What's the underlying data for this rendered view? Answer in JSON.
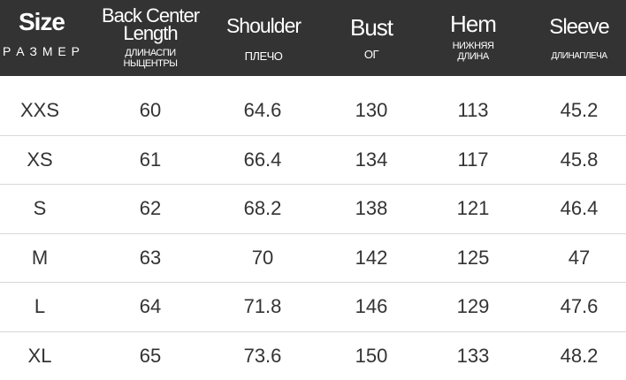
{
  "columns": [
    {
      "en": "Size",
      "ru": "Р А З М Е Р"
    },
    {
      "en": "Back Center Length",
      "ru": "ДЛИНАСПИ НЫЦЕНТРЫ"
    },
    {
      "en": "Shoulder",
      "ru": "ПЛЕЧО"
    },
    {
      "en": "Bust",
      "ru": "ОГ"
    },
    {
      "en": "Hem",
      "ru": "НИЖНЯЯ ДЛИНА"
    },
    {
      "en": "Sleeve",
      "ru": "ДЛИНАПЛЕЧА"
    }
  ],
  "rows": [
    [
      "XXS",
      "60",
      "64.6",
      "130",
      "113",
      "45.2"
    ],
    [
      "XS",
      "61",
      "66.4",
      "134",
      "117",
      "45.8"
    ],
    [
      "S",
      "62",
      "68.2",
      "138",
      "121",
      "46.4"
    ],
    [
      "M",
      "63",
      "70",
      "142",
      "125",
      "47"
    ],
    [
      "L",
      "64",
      "71.8",
      "146",
      "129",
      "47.6"
    ],
    [
      "XL",
      "65",
      "73.6",
      "150",
      "133",
      "48.2"
    ]
  ]
}
